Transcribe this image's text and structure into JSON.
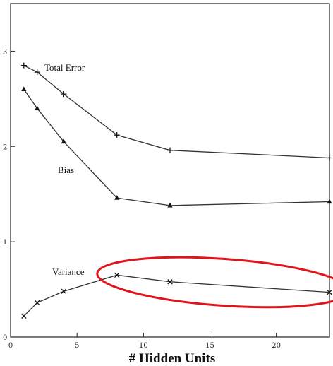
{
  "chart_data": {
    "type": "line",
    "xlabel": "# Hidden Units",
    "ylabel": "",
    "xlim": [
      0,
      24
    ],
    "ylim": [
      0,
      3.5
    ],
    "x_ticks": [
      "0",
      "5",
      "10",
      "15",
      "20"
    ],
    "y_ticks": [
      "0",
      "1",
      "2",
      "3"
    ],
    "grid": false,
    "series": [
      {
        "name": "Total Error",
        "marker": "plus",
        "x": [
          1,
          2,
          4,
          8,
          12,
          24
        ],
        "values": [
          2.85,
          2.78,
          2.55,
          2.12,
          1.96,
          1.88
        ]
      },
      {
        "name": "Bias",
        "marker": "triangle",
        "x": [
          1,
          2,
          4,
          8,
          12,
          24
        ],
        "values": [
          2.6,
          2.4,
          2.05,
          1.46,
          1.38,
          1.42
        ]
      },
      {
        "name": "Variance",
        "marker": "x",
        "x": [
          1,
          2,
          4,
          8,
          12,
          24
        ],
        "values": [
          0.22,
          0.36,
          0.48,
          0.65,
          0.58,
          0.47
        ]
      }
    ],
    "annotations": [
      {
        "type": "ellipse",
        "color": "#e0141b",
        "note": "circled Variance segment from 8 to 24 hidden units",
        "x_range": [
          6.5,
          25.5
        ],
        "y_range": [
          0.33,
          0.82
        ]
      }
    ]
  }
}
